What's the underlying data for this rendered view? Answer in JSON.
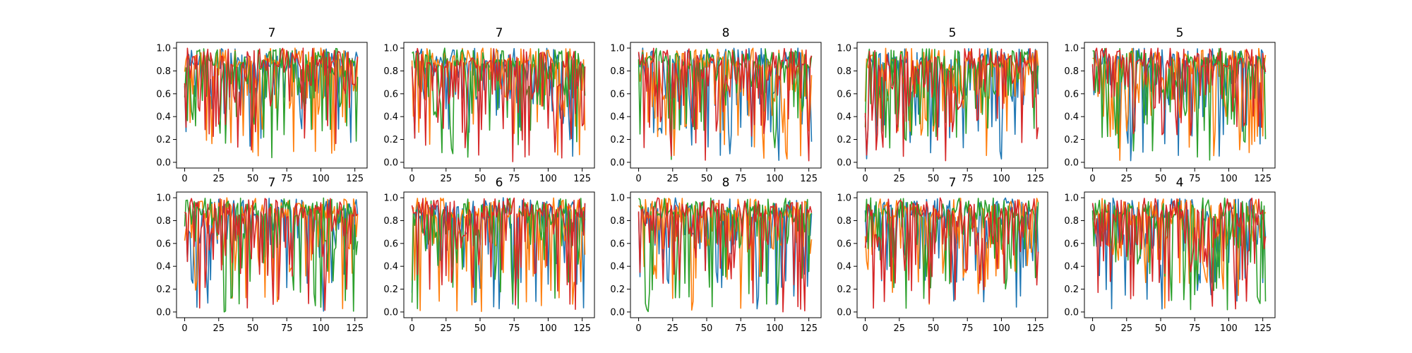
{
  "chart_data": {
    "type": "line",
    "layout": {
      "rows": 2,
      "cols": 5
    },
    "n_points": 128,
    "series_colors": [
      "#1f77b4",
      "#ff7f0e",
      "#2ca02c",
      "#d62728"
    ],
    "xlim": [
      -6,
      134
    ],
    "ylim": [
      -0.05,
      1.05
    ],
    "x_ticks": [
      0,
      25,
      50,
      75,
      100,
      125
    ],
    "x_tick_labels": [
      "0",
      "25",
      "50",
      "75",
      "100",
      "125"
    ],
    "y_ticks": [
      0.0,
      0.2,
      0.4,
      0.6,
      0.8,
      1.0
    ],
    "y_tick_labels": [
      "0.0",
      "0.2",
      "0.4",
      "0.6",
      "0.8",
      "1.0"
    ],
    "panels": [
      {
        "title": "7"
      },
      {
        "title": "7"
      },
      {
        "title": "8"
      },
      {
        "title": "5"
      },
      {
        "title": "5"
      },
      {
        "title": "7"
      },
      {
        "title": "6"
      },
      {
        "title": "8"
      },
      {
        "title": "7"
      },
      {
        "title": "4"
      }
    ]
  }
}
